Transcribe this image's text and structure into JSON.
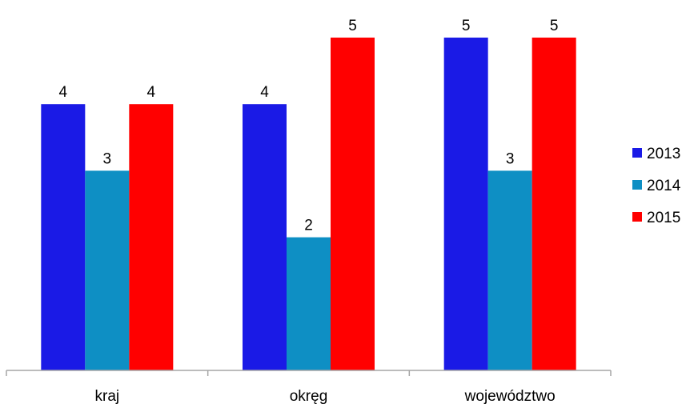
{
  "chart_data": {
    "type": "bar",
    "categories": [
      "kraj",
      "okręg",
      "województwo"
    ],
    "series": [
      {
        "name": "2013",
        "values": [
          4,
          4,
          5
        ],
        "color": "#1a1ae6"
      },
      {
        "name": "2014",
        "values": [
          3,
          2,
          3
        ],
        "color": "#0e8fc4"
      },
      {
        "name": "2015",
        "values": [
          4,
          5,
          5
        ],
        "color": "#ff0000"
      }
    ],
    "ylim": [
      0,
      5
    ],
    "grid": false,
    "legend_position": "right",
    "data_labels": true
  }
}
